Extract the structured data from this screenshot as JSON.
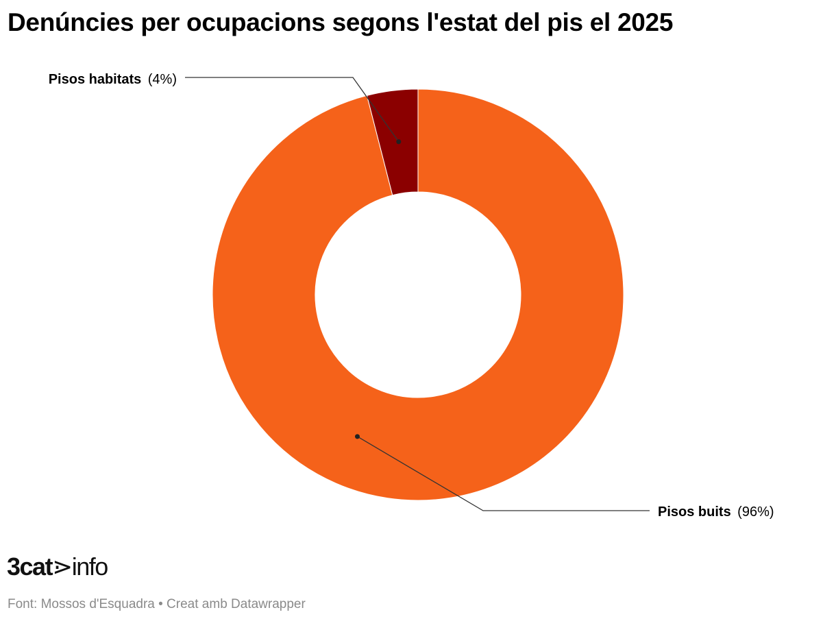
{
  "chart_data": {
    "type": "pie",
    "variant": "donut",
    "title": "Denúncies per ocupacions segons l'estat del pis el 2025",
    "slices": [
      {
        "name": "Pisos habitats",
        "value": 4,
        "label_value": "(4%)",
        "color": "#8b0000"
      },
      {
        "name": "Pisos buits",
        "value": 96,
        "label_value": "(96%)",
        "color": "#f5621a"
      }
    ],
    "legend": "none"
  },
  "footer": {
    "logo_text": "3cat",
    "logo_suffix": "info",
    "source": "Font: Mossos d'Esquadra • Creat amb Datawrapper"
  }
}
